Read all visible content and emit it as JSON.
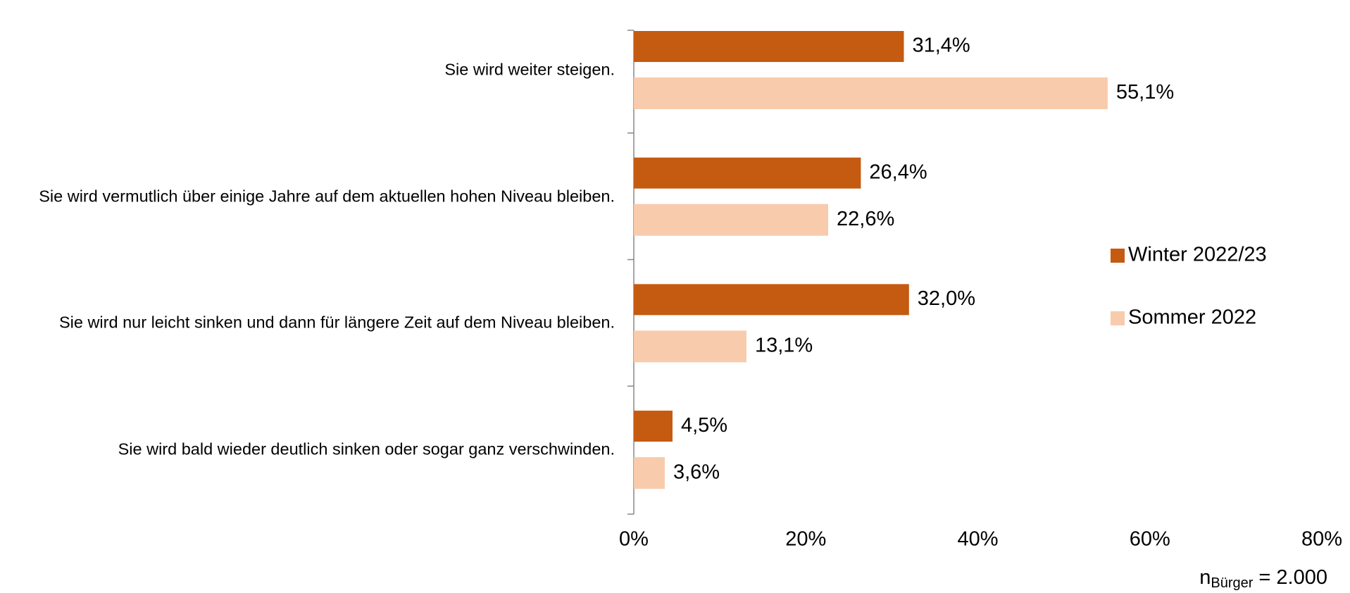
{
  "chart_data": {
    "type": "bar",
    "orientation": "horizontal",
    "categories": [
      "Sie wird weiter steigen.",
      "Sie wird vermutlich über einige Jahre auf dem aktuellen hohen Niveau bleiben.",
      "Sie wird nur leicht sinken und dann für längere Zeit auf dem Niveau bleiben.",
      "Sie wird bald wieder deutlich sinken oder sogar ganz verschwinden."
    ],
    "series": [
      {
        "name": "Winter 2022/23",
        "color": "#c55a11",
        "values": [
          31.4,
          26.4,
          32.0,
          4.5
        ],
        "value_labels": [
          "31,4%",
          "26,4%",
          "32,0%",
          "4,5%"
        ]
      },
      {
        "name": "Sommer 2022",
        "color": "#f8cbad",
        "values": [
          55.1,
          22.6,
          13.1,
          3.6
        ],
        "value_labels": [
          "55,1%",
          "22,6%",
          "13,1%",
          "3,6%"
        ]
      }
    ],
    "xlim": [
      0,
      80
    ],
    "xticks": [
      {
        "value": 0,
        "label": "0%"
      },
      {
        "value": 20,
        "label": "20%"
      },
      {
        "value": 40,
        "label": "40%"
      },
      {
        "value": 60,
        "label": "60%"
      },
      {
        "value": 80,
        "label": "80%"
      }
    ],
    "legend": "right",
    "note": {
      "main": "n",
      "subscript": "Bürger",
      "rest": "= 2.000"
    }
  }
}
